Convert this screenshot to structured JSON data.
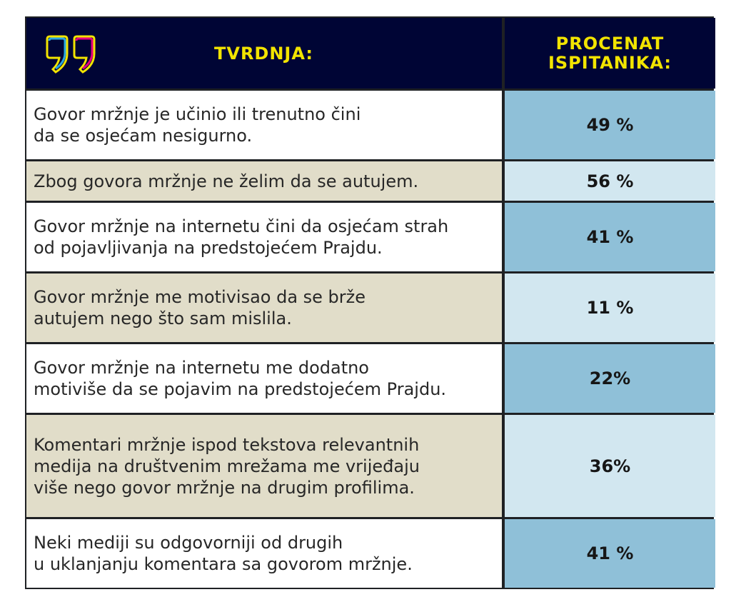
{
  "colors": {
    "header_bg": "#000535",
    "header_text": "#f2e400",
    "row_white": "#ffffff",
    "row_beige": "#e1ddc9",
    "pct_dark_blue": "#8fc0d8",
    "pct_light_blue": "#d2e7f0",
    "logo_quote_left": "#2aa7e0",
    "logo_quote_right": "#e6007e",
    "logo_outline": "#f2e400"
  },
  "header": {
    "logo_icon": "quotation-marks-icon",
    "col1": "TVRDNJA:",
    "col2": "PROCENAT\nISPITANIKA:"
  },
  "chart_data": {
    "type": "table",
    "columns": [
      "TVRDNJA:",
      "PROCENAT ISPITANIKA:"
    ],
    "rows": [
      {
        "statement": "Govor mržnje je učinio ili trenutno čini\nda se osjećam nesigurno.",
        "percent": "49 %",
        "value": 49
      },
      {
        "statement": "Zbog govora mržnje ne želim da se autujem.",
        "percent": "56 %",
        "value": 56
      },
      {
        "statement": "Govor mržnje na internetu čini da osjećam strah\nod pojavljivanja na predstojećem Prajdu.",
        "percent": "41 %",
        "value": 41
      },
      {
        "statement": "Govor mržnje me motivisao da se brže\nautujem nego što sam mislila.",
        "percent": "11 %",
        "value": 11
      },
      {
        "statement": "Govor mržnje na internetu me dodatno\nmotiviše da se pojavim na predstojećem Prajdu.",
        "percent": "22%",
        "value": 22
      },
      {
        "statement": "Komentari mržnje ispod tekstova relevantnih\nmedija na društvenim mrežama me vrijeđaju\nviše nego govor mržnje na drugim profilima.",
        "percent": "36%",
        "value": 36
      },
      {
        "statement": "Neki mediji su odgovorniji od drugih\nu uklanjanju komentara sa govorom mržnje.",
        "percent": "41 %",
        "value": 41
      }
    ]
  }
}
